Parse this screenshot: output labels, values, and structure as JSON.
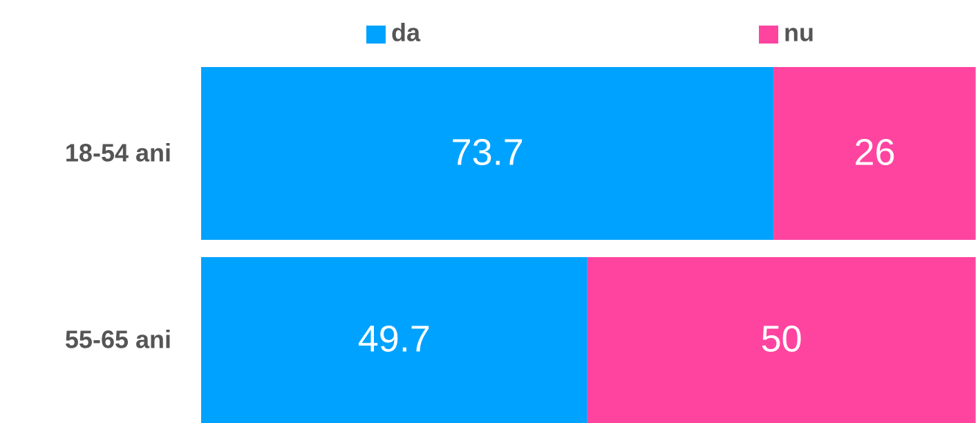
{
  "chart_data": {
    "type": "stacked-bar",
    "orientation": "horizontal",
    "categories": [
      "18-54 ani",
      "55-65 ani"
    ],
    "series": [
      {
        "name": "da",
        "color": "#00a2ff",
        "values": [
          73.7,
          49.7
        ]
      },
      {
        "name": "nu",
        "color": "#ff44a0",
        "values": [
          26,
          50
        ]
      }
    ],
    "xlim": [
      0,
      100
    ],
    "legend": "top"
  }
}
